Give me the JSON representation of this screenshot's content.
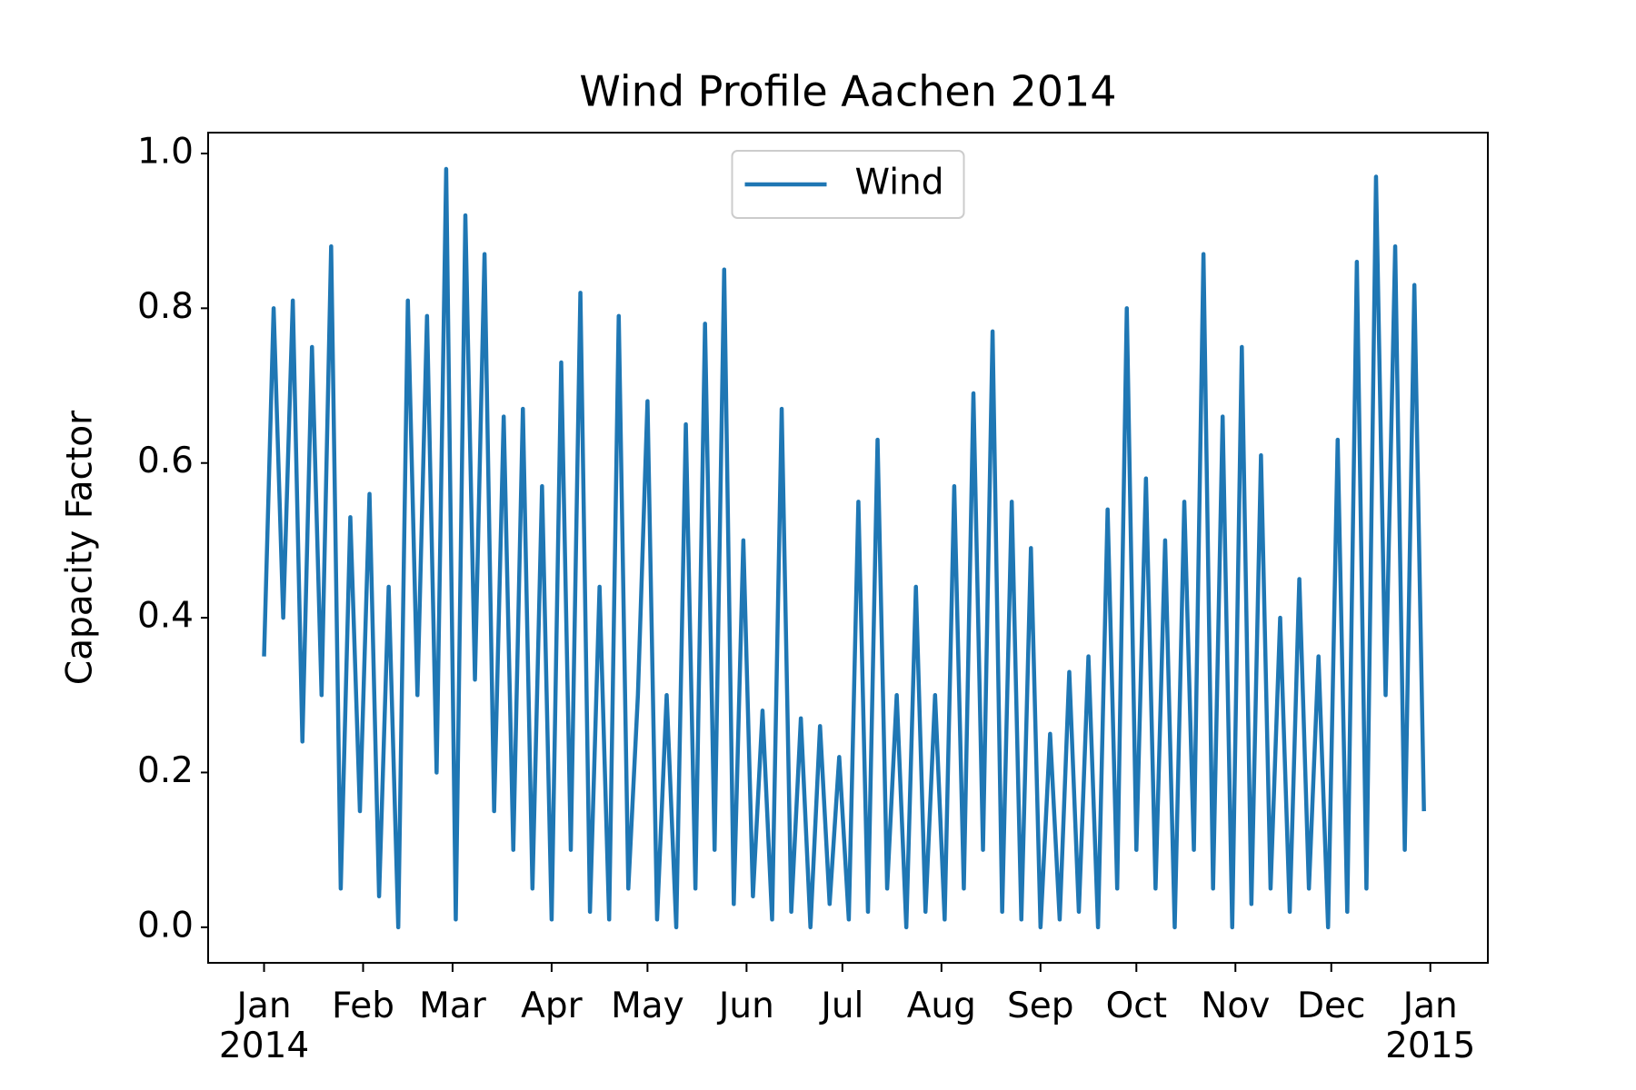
{
  "chart_data": {
    "type": "line",
    "title": "Wind Profile Aachen 2014",
    "y_label": "Capacity Factor",
    "legend": "upper center",
    "xlim": [
      -17.5,
      383
    ],
    "ylim": [
      -0.046,
      1.027
    ],
    "xticks": [
      {
        "value": 0,
        "label": "Jan\n2014"
      },
      {
        "value": 31,
        "label": "Feb"
      },
      {
        "value": 59,
        "label": "Mar"
      },
      {
        "value": 90,
        "label": "Apr"
      },
      {
        "value": 120,
        "label": "May"
      },
      {
        "value": 151,
        "label": "Jun"
      },
      {
        "value": 181,
        "label": "Jul"
      },
      {
        "value": 212,
        "label": "Aug"
      },
      {
        "value": 243,
        "label": "Sep"
      },
      {
        "value": 273,
        "label": "Oct"
      },
      {
        "value": 304,
        "label": "Nov"
      },
      {
        "value": 334,
        "label": "Dec"
      },
      {
        "value": 365,
        "label": "Jan\n2015"
      }
    ],
    "yticks": [
      {
        "value": 0,
        "label": "0.0"
      },
      0.2,
      0.4,
      0.6,
      0.8,
      {
        "value": 1,
        "label": "1.0"
      }
    ],
    "x": [
      0,
      3,
      6,
      9,
      12,
      15,
      18,
      21,
      24,
      27,
      30,
      33,
      36,
      39,
      42,
      45,
      48,
      51,
      54,
      57,
      60,
      63,
      66,
      69,
      72,
      75,
      78,
      81,
      84,
      87,
      90,
      93,
      96,
      99,
      102,
      105,
      108,
      111,
      114,
      117,
      120,
      123,
      126,
      129,
      132,
      135,
      138,
      141,
      144,
      147,
      150,
      153,
      156,
      159,
      162,
      165,
      168,
      171,
      174,
      177,
      180,
      183,
      186,
      189,
      192,
      195,
      198,
      201,
      204,
      207,
      210,
      213,
      216,
      219,
      222,
      225,
      228,
      231,
      234,
      237,
      240,
      243,
      246,
      249,
      252,
      255,
      258,
      261,
      264,
      267,
      270,
      273,
      276,
      279,
      282,
      285,
      288,
      291,
      294,
      297,
      300,
      303,
      306,
      309,
      312,
      315,
      318,
      321,
      324,
      327,
      330,
      333,
      336,
      339,
      342,
      345,
      348,
      351,
      354,
      357,
      360,
      363
    ],
    "series": [
      {
        "name": "Wind",
        "color": "#1f77b4",
        "values": [
          0.35,
          0.8,
          0.4,
          0.81,
          0.24,
          0.75,
          0.3,
          0.88,
          0.05,
          0.53,
          0.15,
          0.56,
          0.04,
          0.44,
          0.0,
          0.81,
          0.3,
          0.79,
          0.2,
          0.98,
          0.01,
          0.92,
          0.32,
          0.87,
          0.15,
          0.66,
          0.1,
          0.67,
          0.05,
          0.57,
          0.01,
          0.73,
          0.1,
          0.82,
          0.02,
          0.44,
          0.01,
          0.79,
          0.05,
          0.3,
          0.68,
          0.01,
          0.3,
          0.0,
          0.65,
          0.05,
          0.78,
          0.1,
          0.85,
          0.03,
          0.5,
          0.04,
          0.28,
          0.01,
          0.67,
          0.02,
          0.27,
          0.0,
          0.26,
          0.03,
          0.22,
          0.01,
          0.55,
          0.02,
          0.63,
          0.05,
          0.3,
          0.0,
          0.44,
          0.02,
          0.3,
          0.01,
          0.57,
          0.05,
          0.69,
          0.1,
          0.77,
          0.02,
          0.55,
          0.01,
          0.49,
          0.0,
          0.25,
          0.01,
          0.33,
          0.02,
          0.35,
          0.0,
          0.54,
          0.05,
          0.8,
          0.1,
          0.58,
          0.05,
          0.5,
          0.0,
          0.55,
          0.1,
          0.87,
          0.05,
          0.66,
          0.0,
          0.75,
          0.03,
          0.61,
          0.05,
          0.4,
          0.02,
          0.45,
          0.05,
          0.35,
          0.0,
          0.63,
          0.02,
          0.86,
          0.05,
          0.97,
          0.3,
          0.88,
          0.1,
          0.83,
          0.15
        ]
      }
    ]
  }
}
